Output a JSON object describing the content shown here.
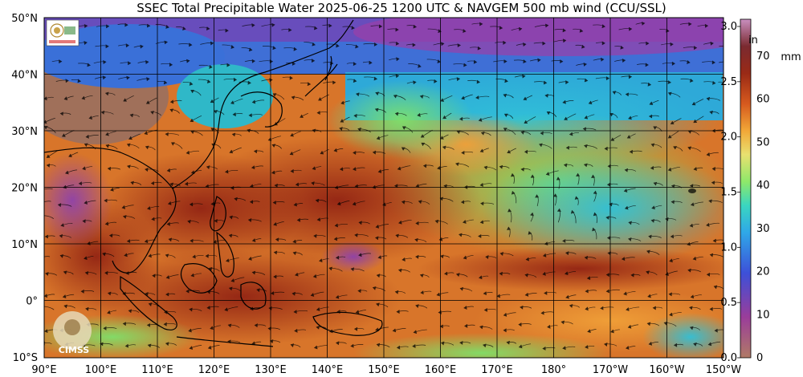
{
  "title": "SSEC Total Precipitable Water  2025-06-25 1200 UTC & NAVGEM 500 mb wind (CCU/SSL)",
  "logo_bottom": "CIMSS",
  "lat_labels": [
    "50°N",
    "40°N",
    "30°N",
    "20°N",
    "10°N",
    "0°",
    "10°S"
  ],
  "lon_labels": [
    "90°E",
    "100°E",
    "110°E",
    "120°E",
    "130°E",
    "140°E",
    "150°E",
    "160°E",
    "170°E",
    "180°",
    "170°W",
    "160°W",
    "150°W"
  ],
  "colorbar": {
    "in_unit": "in",
    "mm_unit": "mm",
    "in_ticks": [
      "3.0",
      "2.5",
      "2.0",
      "1.5",
      "1.0",
      "0.5",
      "0.0"
    ],
    "mm_ticks": [
      "70",
      "60",
      "50",
      "40",
      "30",
      "20",
      "10",
      "0"
    ]
  },
  "colors": {
    "very_moist": "#8e1f12",
    "moist": "#c9561d",
    "orange": "#f0a038",
    "green": "#7ee06a",
    "cyan": "#28c6d2",
    "blue": "#2f74d8",
    "purple": "#8a3fb2",
    "dry_brown": "#a0705a"
  }
}
